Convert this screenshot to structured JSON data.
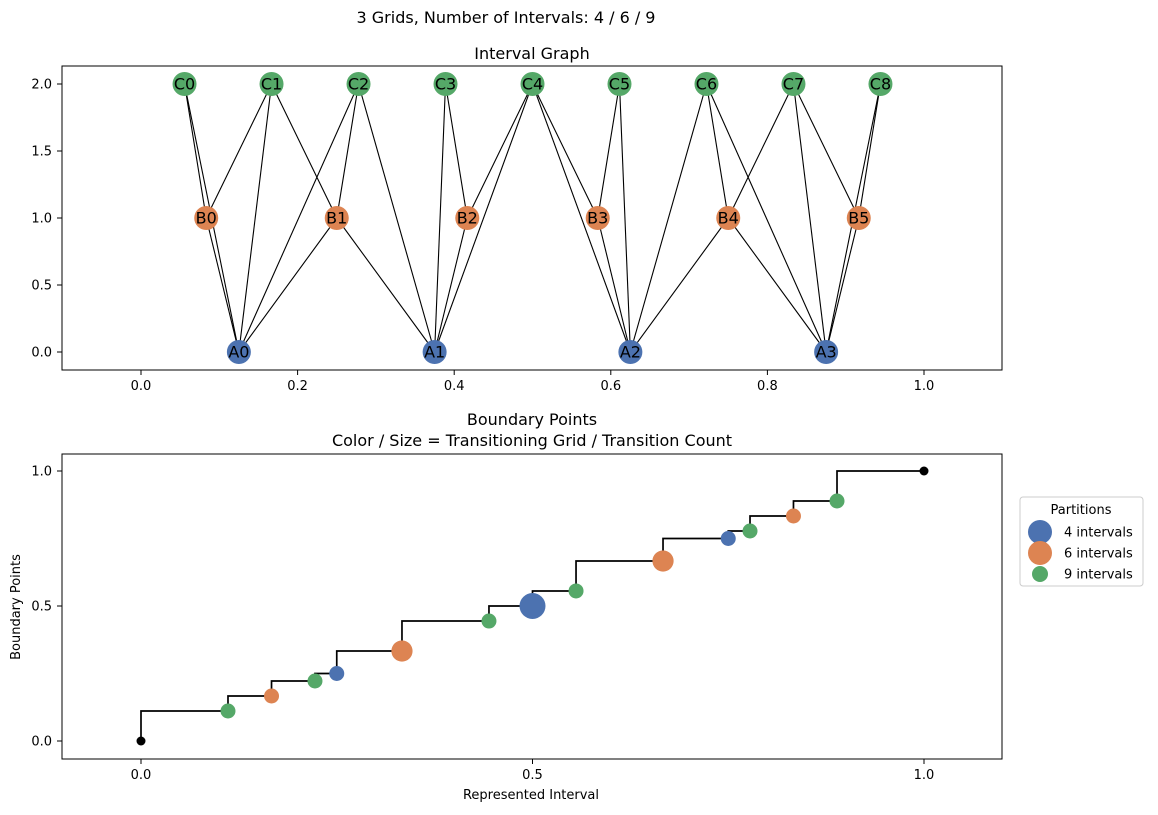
{
  "suptitle": "3 Grids, Number of Intervals: 4 / 6 / 9",
  "chart_data": [
    {
      "type": "network",
      "title": "Interval Graph",
      "xlim": [
        -0.1,
        1.1
      ],
      "ylim": [
        -0.13,
        2.13
      ],
      "xticks": [
        0.0,
        0.2,
        0.4,
        0.6,
        0.8,
        1.0
      ],
      "xtick_labels": [
        "0.0",
        "0.2",
        "0.4",
        "0.6",
        "0.8",
        "1.0"
      ],
      "yticks": [
        0.0,
        0.5,
        1.0,
        1.5,
        2.0
      ],
      "ytick_labels": [
        "0.0",
        "0.5",
        "1.0",
        "1.5",
        "2.0"
      ],
      "grid": false,
      "node_colors": {
        "A": "#4c72b0",
        "B": "#dd8452",
        "C": "#55a868"
      },
      "nodes": [
        {
          "label": "A0",
          "grid": "A",
          "x": 0.125,
          "y": 0
        },
        {
          "label": "A1",
          "grid": "A",
          "x": 0.375,
          "y": 0
        },
        {
          "label": "A2",
          "grid": "A",
          "x": 0.625,
          "y": 0
        },
        {
          "label": "A3",
          "grid": "A",
          "x": 0.875,
          "y": 0
        },
        {
          "label": "B0",
          "grid": "B",
          "x": 0.0833,
          "y": 1
        },
        {
          "label": "B1",
          "grid": "B",
          "x": 0.25,
          "y": 1
        },
        {
          "label": "B2",
          "grid": "B",
          "x": 0.4167,
          "y": 1
        },
        {
          "label": "B3",
          "grid": "B",
          "x": 0.5833,
          "y": 1
        },
        {
          "label": "B4",
          "grid": "B",
          "x": 0.75,
          "y": 1
        },
        {
          "label": "B5",
          "grid": "B",
          "x": 0.9167,
          "y": 1
        },
        {
          "label": "C0",
          "grid": "C",
          "x": 0.0556,
          "y": 2
        },
        {
          "label": "C1",
          "grid": "C",
          "x": 0.1667,
          "y": 2
        },
        {
          "label": "C2",
          "grid": "C",
          "x": 0.2778,
          "y": 2
        },
        {
          "label": "C3",
          "grid": "C",
          "x": 0.3889,
          "y": 2
        },
        {
          "label": "C4",
          "grid": "C",
          "x": 0.5,
          "y": 2
        },
        {
          "label": "C5",
          "grid": "C",
          "x": 0.6111,
          "y": 2
        },
        {
          "label": "C6",
          "grid": "C",
          "x": 0.7222,
          "y": 2
        },
        {
          "label": "C7",
          "grid": "C",
          "x": 0.8333,
          "y": 2
        },
        {
          "label": "C8",
          "grid": "C",
          "x": 0.9444,
          "y": 2
        }
      ],
      "edges": [
        [
          "A0",
          "B0"
        ],
        [
          "A0",
          "B1"
        ],
        [
          "A1",
          "B1"
        ],
        [
          "A1",
          "B2"
        ],
        [
          "A2",
          "B3"
        ],
        [
          "A2",
          "B4"
        ],
        [
          "A3",
          "B4"
        ],
        [
          "A3",
          "B5"
        ],
        [
          "A0",
          "C0"
        ],
        [
          "A0",
          "C1"
        ],
        [
          "A0",
          "C2"
        ],
        [
          "A1",
          "C2"
        ],
        [
          "A1",
          "C3"
        ],
        [
          "A1",
          "C4"
        ],
        [
          "A2",
          "C4"
        ],
        [
          "A2",
          "C5"
        ],
        [
          "A2",
          "C6"
        ],
        [
          "A3",
          "C6"
        ],
        [
          "A3",
          "C7"
        ],
        [
          "A3",
          "C8"
        ],
        [
          "B0",
          "C0"
        ],
        [
          "B0",
          "C1"
        ],
        [
          "B1",
          "C1"
        ],
        [
          "B1",
          "C2"
        ],
        [
          "B2",
          "C3"
        ],
        [
          "B2",
          "C4"
        ],
        [
          "B3",
          "C4"
        ],
        [
          "B3",
          "C5"
        ],
        [
          "B4",
          "C6"
        ],
        [
          "B4",
          "C7"
        ],
        [
          "B5",
          "C7"
        ],
        [
          "B5",
          "C8"
        ]
      ]
    },
    {
      "type": "scatter",
      "title": "Boundary Points",
      "subtitle": "Color / Size = Transitioning Grid / Transition Count",
      "xlabel": "Represented Interval",
      "ylabel": "Boundary Points",
      "xlim": [
        -0.1,
        1.1
      ],
      "ylim": [
        -0.06,
        1.06
      ],
      "xticks": [
        0.0,
        0.5,
        1.0
      ],
      "xtick_labels": [
        "0.0",
        "0.5",
        "1.0"
      ],
      "yticks": [
        0.0,
        0.5,
        1.0
      ],
      "ytick_labels": [
        "0.0",
        "0.5",
        "1.0"
      ],
      "grid": false,
      "step_line": {
        "color": "#000000",
        "x": [
          0,
          0.1111,
          0.1667,
          0.2222,
          0.25,
          0.3333,
          0.4444,
          0.5,
          0.5556,
          0.6667,
          0.75,
          0.7778,
          0.8333,
          0.8889,
          1.0
        ],
        "y": [
          0,
          0.1111,
          0.1667,
          0.2222,
          0.25,
          0.3333,
          0.4444,
          0.5,
          0.5556,
          0.6667,
          0.75,
          0.7778,
          0.8333,
          0.8889,
          1.0
        ]
      },
      "endpoints": [
        {
          "x": 0,
          "y": 0,
          "color": "#000000"
        },
        {
          "x": 1.0,
          "y": 1.0,
          "color": "#000000"
        }
      ],
      "series": [
        {
          "name": "4 intervals",
          "color": "#4c72b0",
          "x": [
            0.25,
            0.5,
            0.75
          ],
          "y": [
            0.25,
            0.5,
            0.75
          ],
          "count": [
            1,
            3,
            1
          ]
        },
        {
          "name": "6 intervals",
          "color": "#dd8452",
          "x": [
            0.1667,
            0.3333,
            0.6667,
            0.8333
          ],
          "y": [
            0.1667,
            0.3333,
            0.6667,
            0.8333
          ],
          "count": [
            1,
            2,
            2,
            1
          ]
        },
        {
          "name": "9 intervals",
          "color": "#55a868",
          "x": [
            0.1111,
            0.2222,
            0.4444,
            0.5556,
            0.7778,
            0.8889
          ],
          "y": [
            0.1111,
            0.2222,
            0.4444,
            0.5556,
            0.7778,
            0.8889
          ],
          "count": [
            1,
            1,
            1,
            1,
            1,
            1
          ]
        }
      ],
      "legend": {
        "title": "Partitions",
        "placement": "outside right",
        "entries": [
          "4 intervals",
          "6 intervals",
          "9 intervals"
        ]
      }
    }
  ]
}
